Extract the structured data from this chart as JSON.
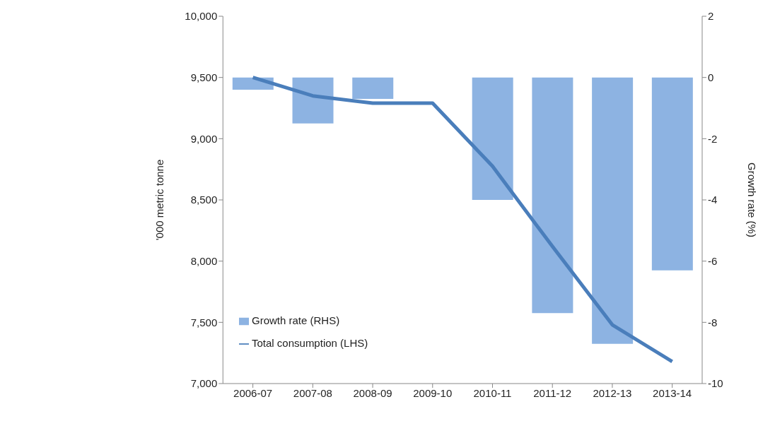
{
  "chart_data": {
    "type": "bar",
    "categories": [
      "2006-07",
      "2007-08",
      "2008-09",
      "2009-10",
      "2010-11",
      "2011-12",
      "2012-13",
      "2013-14"
    ],
    "series": [
      {
        "name": "Growth rate (RHS)",
        "axis": "y2",
        "color": "#8db3e2",
        "values": [
          -0.4,
          -1.5,
          -0.7,
          0,
          -4.0,
          -7.7,
          -8.7,
          -6.3
        ]
      },
      {
        "name": "Total consumption (LHS)",
        "type": "line",
        "color": "#4a7ebb",
        "values": [
          9500,
          9350,
          9290,
          9290,
          8775,
          8120,
          7480,
          7180
        ]
      }
    ],
    "ylabel": "'000 metric tonne",
    "y2label": "Growth rate (%)",
    "ylim": [
      7000,
      10000
    ],
    "yticks": [
      {
        "value": 7000,
        "label": "7,000"
      },
      {
        "value": 7500,
        "label": "7,500"
      },
      {
        "value": 8000,
        "label": "8,000"
      },
      {
        "value": 8500,
        "label": "8,500"
      },
      {
        "value": 9000,
        "label": "9,000"
      },
      {
        "value": 9500,
        "label": "9,500"
      },
      {
        "value": 10000,
        "label": "10,000"
      }
    ],
    "y2lim": [
      -10,
      2
    ],
    "y2ticks": [
      -10,
      -8,
      -6,
      -4,
      -2,
      0,
      2
    ],
    "legend": "bottom left",
    "marker": "none",
    "line_style": "solid",
    "grid": false
  }
}
